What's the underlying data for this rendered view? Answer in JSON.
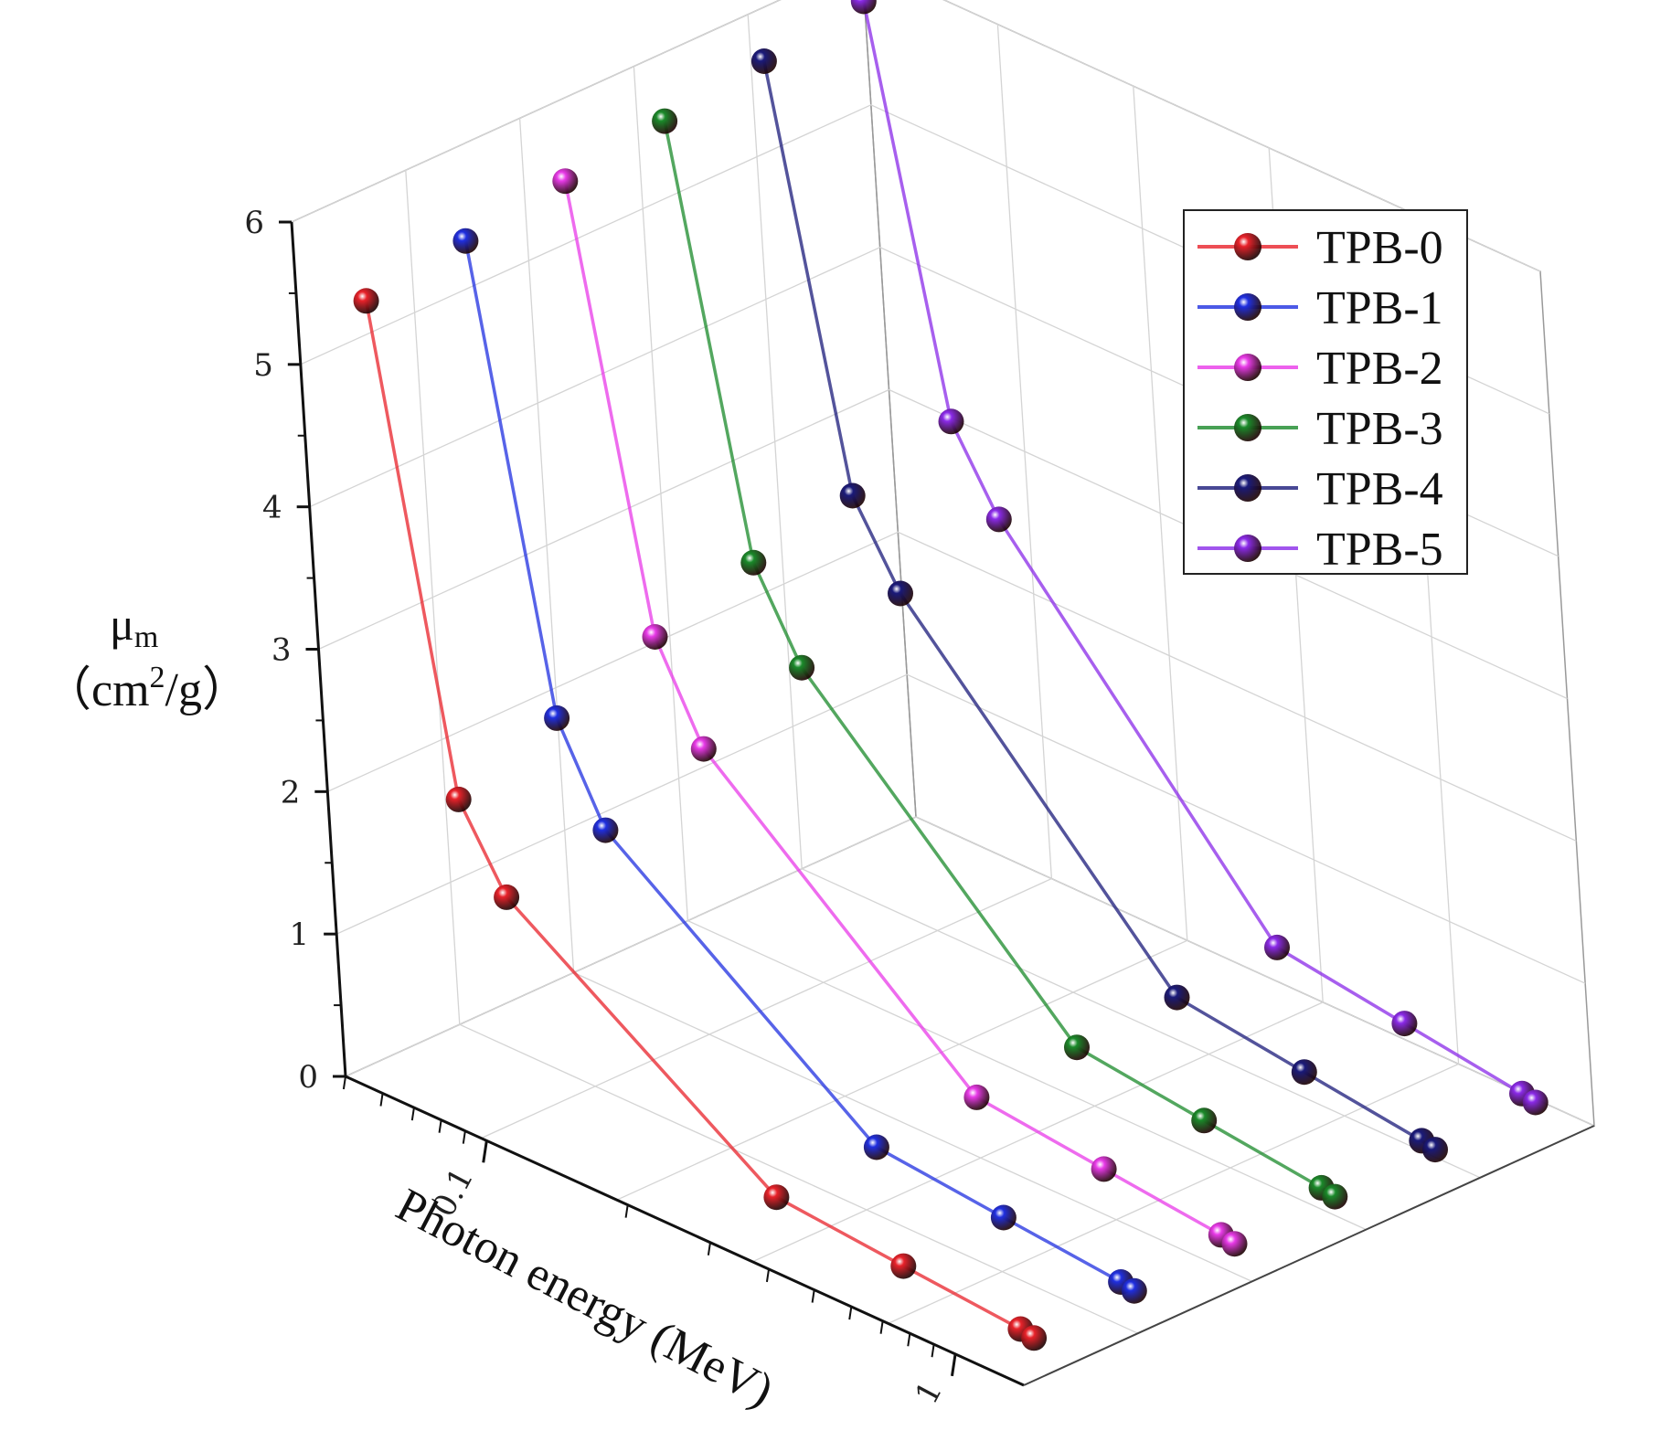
{
  "chart_data": {
    "type": "line",
    "projection": "3d",
    "title": "",
    "zlabel_symbol": "μ",
    "zlabel_subscript": "m",
    "zlabel_unit_open": "（cm",
    "zlabel_unit_sup": "2",
    "zlabel_unit_close": "/g）",
    "xlabel": "Photon energy (MeV)",
    "x_scale": "log",
    "x_tick_labels": [
      "0.1",
      "1"
    ],
    "z_tick_labels": [
      "0",
      "1",
      "2",
      "3",
      "4",
      "5",
      "6"
    ],
    "zlim": [
      0,
      6
    ],
    "grid": true,
    "legend_position": "top-right",
    "x": [
      0.0595,
      0.081,
      0.1,
      0.356,
      0.662,
      1.173,
      1.252
    ],
    "series": [
      {
        "name": "TPB-0",
        "color": "#e8222a",
        "values": [
          5.45,
          2.15,
          1.6,
          0.32,
          0.24,
          0.17,
          0.15
        ]
      },
      {
        "name": "TPB-1",
        "color": "#1f2fe0",
        "values": [
          5.55,
          2.4,
          1.75,
          0.35,
          0.26,
          0.18,
          0.16
        ]
      },
      {
        "name": "TPB-2",
        "color": "#e83ae8",
        "values": [
          5.65,
          2.65,
          2.0,
          0.38,
          0.28,
          0.19,
          0.17
        ]
      },
      {
        "name": "TPB-3",
        "color": "#1a8a2a",
        "values": [
          5.75,
          2.85,
          2.25,
          0.41,
          0.3,
          0.2,
          0.18
        ]
      },
      {
        "name": "TPB-4",
        "color": "#1a1a7a",
        "values": [
          5.85,
          3.0,
          2.45,
          0.44,
          0.32,
          0.21,
          0.19
        ]
      },
      {
        "name": "TPB-5",
        "color": "#8a2ae8",
        "values": [
          5.95,
          3.2,
          2.65,
          0.47,
          0.34,
          0.22,
          0.2
        ]
      }
    ]
  }
}
